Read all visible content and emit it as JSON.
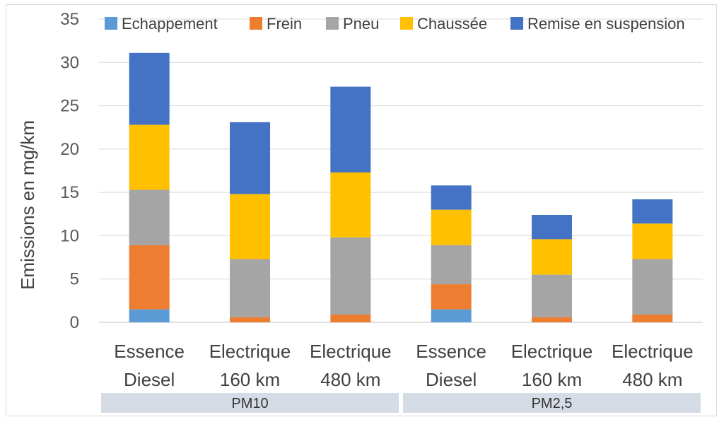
{
  "chart_data": {
    "type": "bar",
    "stacked": true,
    "ylabel": "Emissions en mg/km",
    "ylim": [
      0,
      35
    ],
    "yticks": [
      0,
      5,
      10,
      15,
      20,
      25,
      30,
      35
    ],
    "grid": true,
    "legend_position": "top",
    "categories": [
      [
        "Essence",
        "Diesel"
      ],
      [
        "Electrique",
        "160 km"
      ],
      [
        "Electrique",
        "480 km"
      ],
      [
        "Essence",
        "Diesel"
      ],
      [
        "Electrique",
        "160 km"
      ],
      [
        "Electrique",
        "480 km"
      ]
    ],
    "groups": [
      {
        "label": "PM10",
        "span": [
          0,
          2
        ]
      },
      {
        "label": "PM2,5",
        "span": [
          3,
          5
        ]
      }
    ],
    "series": [
      {
        "name": "Echappement",
        "color": "#5b9bd5",
        "values": [
          1.5,
          0,
          0,
          1.5,
          0,
          0
        ]
      },
      {
        "name": "Frein",
        "color": "#ed7d31",
        "values": [
          7.4,
          0.6,
          0.9,
          2.9,
          0.6,
          0.9
        ]
      },
      {
        "name": "Pneu",
        "color": "#a5a5a5",
        "values": [
          6.4,
          6.7,
          8.9,
          4.5,
          4.9,
          6.4
        ]
      },
      {
        "name": "Chaussée",
        "color": "#ffc000",
        "values": [
          7.5,
          7.5,
          7.5,
          4.1,
          4.1,
          4.1
        ]
      },
      {
        "name": "Remise en suspension",
        "color": "#4472c4",
        "values": [
          8.3,
          8.3,
          9.9,
          2.8,
          2.8,
          2.8
        ]
      }
    ]
  }
}
